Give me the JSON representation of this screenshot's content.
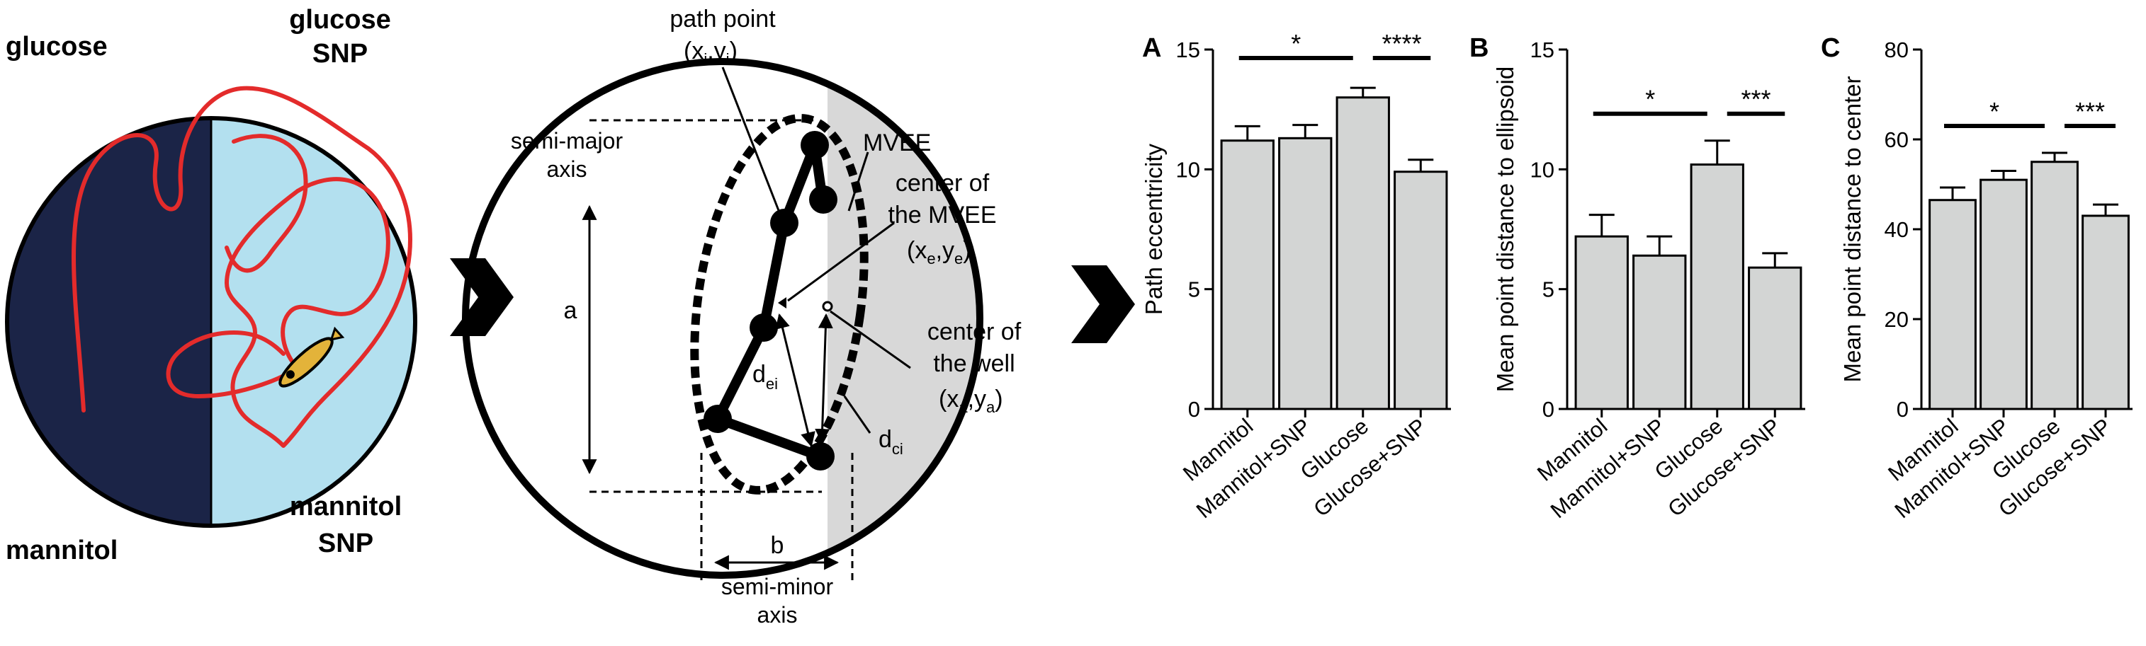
{
  "arena": {
    "labels": {
      "top_left": "glucose",
      "top_right_1": "glucose",
      "top_right_2": "SNP",
      "bottom_left": "mannitol",
      "bottom_right_1": "mannitol",
      "bottom_right_2": "SNP"
    },
    "colors": {
      "dark_half": "#1b2447",
      "light_half": "#b3e0ef",
      "path": "#e32b2b",
      "fish": "#e3b33a"
    }
  },
  "diagram": {
    "path_point_1": "path point",
    "path_point_2": "(x",
    "path_point_sub_i1": "i",
    "path_point_3": ",y",
    "path_point_sub_i2": "i",
    "path_point_4": ")",
    "semi_major_1": "semi-major",
    "semi_major_2": "axis",
    "a": "a",
    "b": "b",
    "semi_minor_1": "semi-minor",
    "semi_minor_2": "axis",
    "mvee": "MVEE",
    "center_mvee_1": "center of",
    "center_mvee_2": "the MVEE",
    "center_mvee_3": "(x",
    "center_mvee_sub_e1": "e",
    "center_mvee_4": ",y",
    "center_mvee_sub_e2": "e",
    "center_mvee_5": ")",
    "center_well_1": "center of",
    "center_well_2": "the well",
    "center_well_3": "(x",
    "center_well_sub_a1": "a",
    "center_well_4": ",y",
    "center_well_sub_a2": "a",
    "center_well_5": ")",
    "d_ei": "d",
    "d_ei_sub": "ei",
    "d_ci": "d",
    "d_ci_sub": "ci"
  },
  "chart_data": [
    {
      "panel": "A",
      "type": "bar",
      "categories": [
        "Mannitol",
        "Mannitol+SNP",
        "Glucose",
        "Glucose+SNP"
      ],
      "values": [
        11.2,
        11.3,
        13.0,
        9.9
      ],
      "errors": [
        0.6,
        0.55,
        0.4,
        0.5
      ],
      "ylabel": "Path eccentricity",
      "ylim": [
        0,
        15
      ],
      "yticks": [
        "0",
        "5",
        "10",
        "15"
      ],
      "significance": [
        {
          "from": 0,
          "to": 2,
          "label": "*"
        },
        {
          "from": 2,
          "to": 3,
          "label": "****"
        }
      ]
    },
    {
      "panel": "B",
      "type": "bar",
      "categories": [
        "Mannitol",
        "Mannitol+SNP",
        "Glucose",
        "Glucose+SNP"
      ],
      "values": [
        7.2,
        6.4,
        10.2,
        5.9
      ],
      "errors": [
        0.9,
        0.8,
        1.0,
        0.6
      ],
      "ylabel": "Mean point distance to ellipsoid",
      "ylim": [
        0,
        15
      ],
      "yticks": [
        "0",
        "5",
        "10",
        "15"
      ],
      "significance": [
        {
          "from": 0,
          "to": 2,
          "label": "*"
        },
        {
          "from": 2,
          "to": 3,
          "label": "***"
        }
      ]
    },
    {
      "panel": "C",
      "type": "bar",
      "categories": [
        "Mannitol",
        "Mannitol+SNP",
        "Glucose",
        "Glucose+SNP"
      ],
      "values": [
        46.5,
        51.0,
        55.0,
        43.0
      ],
      "errors": [
        2.8,
        2.0,
        2.0,
        2.5
      ],
      "ylabel": "Mean point distance to center",
      "ylim": [
        0,
        80
      ],
      "yticks": [
        "0",
        "20",
        "40",
        "60",
        "80"
      ],
      "significance": [
        {
          "from": 0,
          "to": 2,
          "label": "*"
        },
        {
          "from": 2,
          "to": 3,
          "label": "***"
        }
      ]
    }
  ],
  "colors": {
    "bar_fill": "#d3d5d4",
    "ink": "#000000"
  }
}
